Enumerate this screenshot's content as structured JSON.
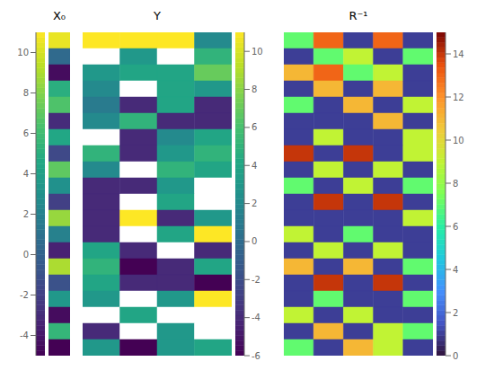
{
  "chart_data": [
    {
      "type": "heatmap",
      "title": "X₀",
      "color": "viridis",
      "tick_labels": false,
      "cells": [
        [
          10.5
        ],
        [
          0.5
        ],
        [
          -4.5
        ],
        [
          5.0
        ],
        [
          6.5
        ],
        [
          -3.0
        ],
        [
          4.5
        ],
        [
          -1.5
        ],
        [
          7.0
        ],
        [
          3.0
        ],
        [
          -2.0
        ],
        [
          8.5
        ],
        [
          2.0
        ],
        [
          -3.5
        ],
        [
          9.0
        ],
        [
          -1.0
        ],
        [
          3.5
        ],
        [
          -4.5
        ],
        [
          5.5
        ],
        [
          -5.0
        ]
      ],
      "colorbar": {
        "range": [
          -5,
          11
        ],
        "ticks": [
          -4,
          -2,
          0,
          2,
          4,
          6,
          8,
          10
        ]
      }
    },
    {
      "type": "heatmap",
      "title": "Y",
      "color": "viridis",
      "tick_labels": false,
      "cells": [
        [
          11,
          11,
          11,
          2
        ],
        [
          null,
          3,
          null,
          5
        ],
        [
          3,
          4,
          4,
          7
        ],
        [
          2,
          null,
          4,
          3
        ],
        [
          1,
          -4,
          4,
          -4
        ],
        [
          2,
          5,
          -4,
          -4
        ],
        [
          null,
          -4,
          2,
          4
        ],
        [
          5,
          -4,
          3,
          5
        ],
        [
          2,
          null,
          5,
          4
        ],
        [
          -4,
          -4,
          3,
          null
        ],
        [
          -4,
          null,
          4,
          null
        ],
        [
          -4,
          11,
          -4,
          3
        ],
        [
          -4,
          null,
          4,
          11
        ],
        [
          4,
          -4,
          null,
          -4
        ],
        [
          5,
          -6,
          -4,
          4
        ],
        [
          4,
          -4,
          -4,
          -6
        ],
        [
          3,
          null,
          3,
          11
        ],
        [
          null,
          4,
          null,
          null
        ],
        [
          -4,
          null,
          3,
          null
        ],
        [
          3,
          -6,
          3,
          4
        ]
      ],
      "colorbar": {
        "range": [
          -6,
          11
        ],
        "ticks": [
          -6,
          -4,
          -2,
          0,
          2,
          4,
          6,
          8,
          10
        ]
      }
    },
    {
      "type": "heatmap",
      "title": "R⁻¹",
      "color": "turbo",
      "tick_labels": false,
      "cells": [
        [
          7,
          13,
          1,
          13,
          1
        ],
        [
          1,
          7,
          9,
          1,
          7
        ],
        [
          11,
          13,
          7,
          9,
          1
        ],
        [
          1,
          11,
          1,
          11,
          1
        ],
        [
          7,
          1,
          11,
          1,
          9
        ],
        [
          1,
          1,
          1,
          11,
          1
        ],
        [
          1,
          9,
          1,
          1,
          9
        ],
        [
          14,
          1,
          14,
          1,
          9
        ],
        [
          1,
          9,
          1,
          9,
          1
        ],
        [
          7,
          1,
          9,
          1,
          7
        ],
        [
          1,
          14,
          1,
          14,
          1
        ],
        [
          1,
          1,
          1,
          1,
          9
        ],
        [
          9,
          1,
          7,
          1,
          1
        ],
        [
          1,
          9,
          1,
          9,
          1
        ],
        [
          11,
          1,
          11,
          1,
          7
        ],
        [
          1,
          14,
          1,
          14,
          1
        ],
        [
          1,
          7,
          1,
          1,
          7
        ],
        [
          9,
          1,
          9,
          1,
          1
        ],
        [
          1,
          11,
          1,
          9,
          7
        ],
        [
          7,
          1,
          11,
          9,
          1
        ]
      ],
      "colorbar": {
        "range": [
          0,
          15
        ],
        "ticks": [
          0,
          2,
          4,
          6,
          8,
          10,
          12,
          14
        ]
      }
    }
  ]
}
